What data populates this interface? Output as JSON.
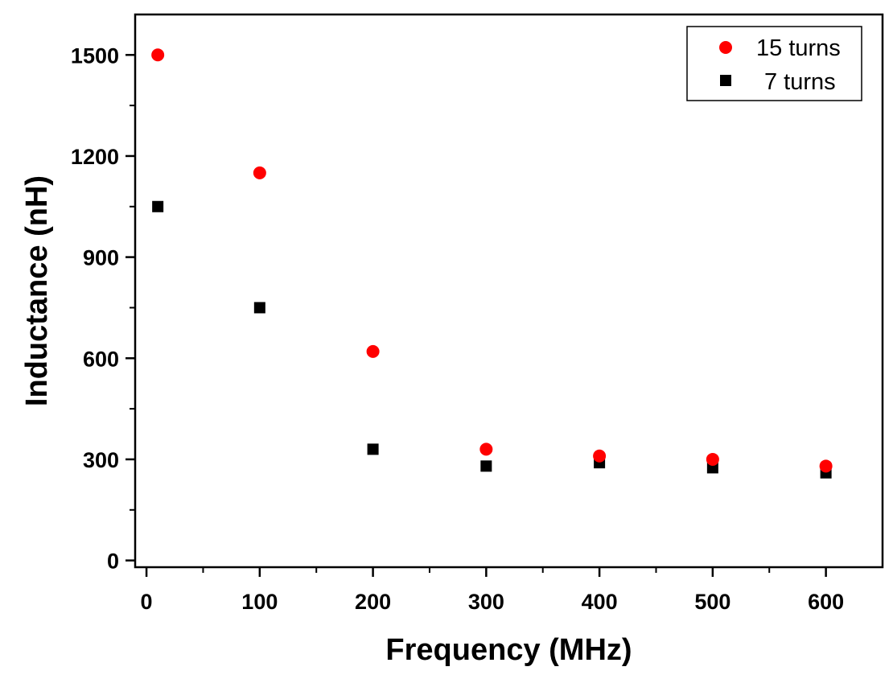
{
  "chart_data": {
    "type": "scatter",
    "title": "",
    "xlabel": "Frequency (MHz)",
    "ylabel": "Inductance (nH)",
    "xlim": [
      -10,
      650
    ],
    "ylim": [
      -20,
      1620
    ],
    "x_ticks": [
      0,
      100,
      200,
      300,
      400,
      500,
      600
    ],
    "x_tick_labels": [
      "0",
      "100",
      "200",
      "300",
      "400",
      "500",
      "600"
    ],
    "x_minor_ticks": [
      50,
      150,
      250,
      350,
      450,
      550
    ],
    "y_ticks": [
      0,
      300,
      600,
      900,
      1200,
      1500
    ],
    "y_tick_labels": [
      "0",
      "300",
      "600",
      "900",
      "1200",
      "1500"
    ],
    "y_minor_ticks": [
      150,
      450,
      750,
      1050,
      1350
    ],
    "grid": false,
    "legend_position": "top-right",
    "series": [
      {
        "name": "15 turns",
        "marker": "circle",
        "color": "#ff0000",
        "x": [
          10,
          100,
          200,
          300,
          400,
          500,
          600
        ],
        "y": [
          1500,
          1150,
          620,
          330,
          310,
          300,
          280
        ]
      },
      {
        "name": "7 turns",
        "marker": "square",
        "color": "#000000",
        "x": [
          10,
          100,
          200,
          300,
          400,
          500,
          600
        ],
        "y": [
          1050,
          750,
          330,
          280,
          290,
          275,
          260
        ]
      }
    ]
  }
}
